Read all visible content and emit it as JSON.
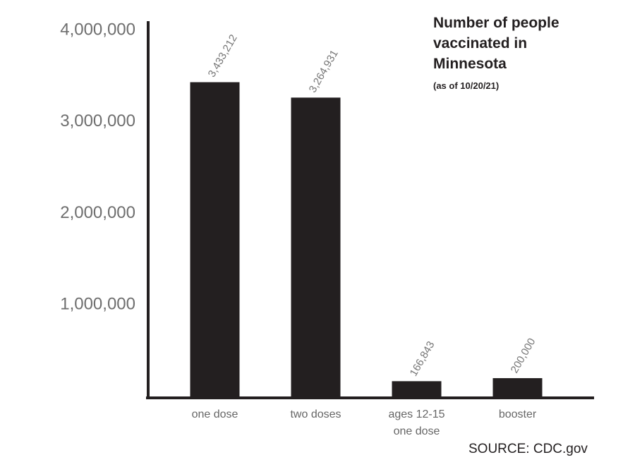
{
  "chart_data": {
    "type": "bar",
    "title": "Number of people vaccinated in Minnesota",
    "subtitle": "(as of 10/20/21)",
    "source": "SOURCE: CDC.gov",
    "categories": [
      "one dose",
      "two doses",
      "ages 12-15 one dose",
      "booster"
    ],
    "values": [
      3433212,
      3264931,
      166843,
      200000
    ],
    "value_labels": [
      "3,433,212",
      "3,264,931",
      "166,843",
      "200,000"
    ],
    "color": "#231f20",
    "ylim": [
      0,
      4100000
    ],
    "yticks": [
      {
        "value": 1000000,
        "label": "1,000,000"
      },
      {
        "value": 2000000,
        "label": "2,000,000"
      },
      {
        "value": 3000000,
        "label": "3,000,000"
      },
      {
        "value": 4000000,
        "label": "4,000,000"
      }
    ],
    "grid": false
  }
}
